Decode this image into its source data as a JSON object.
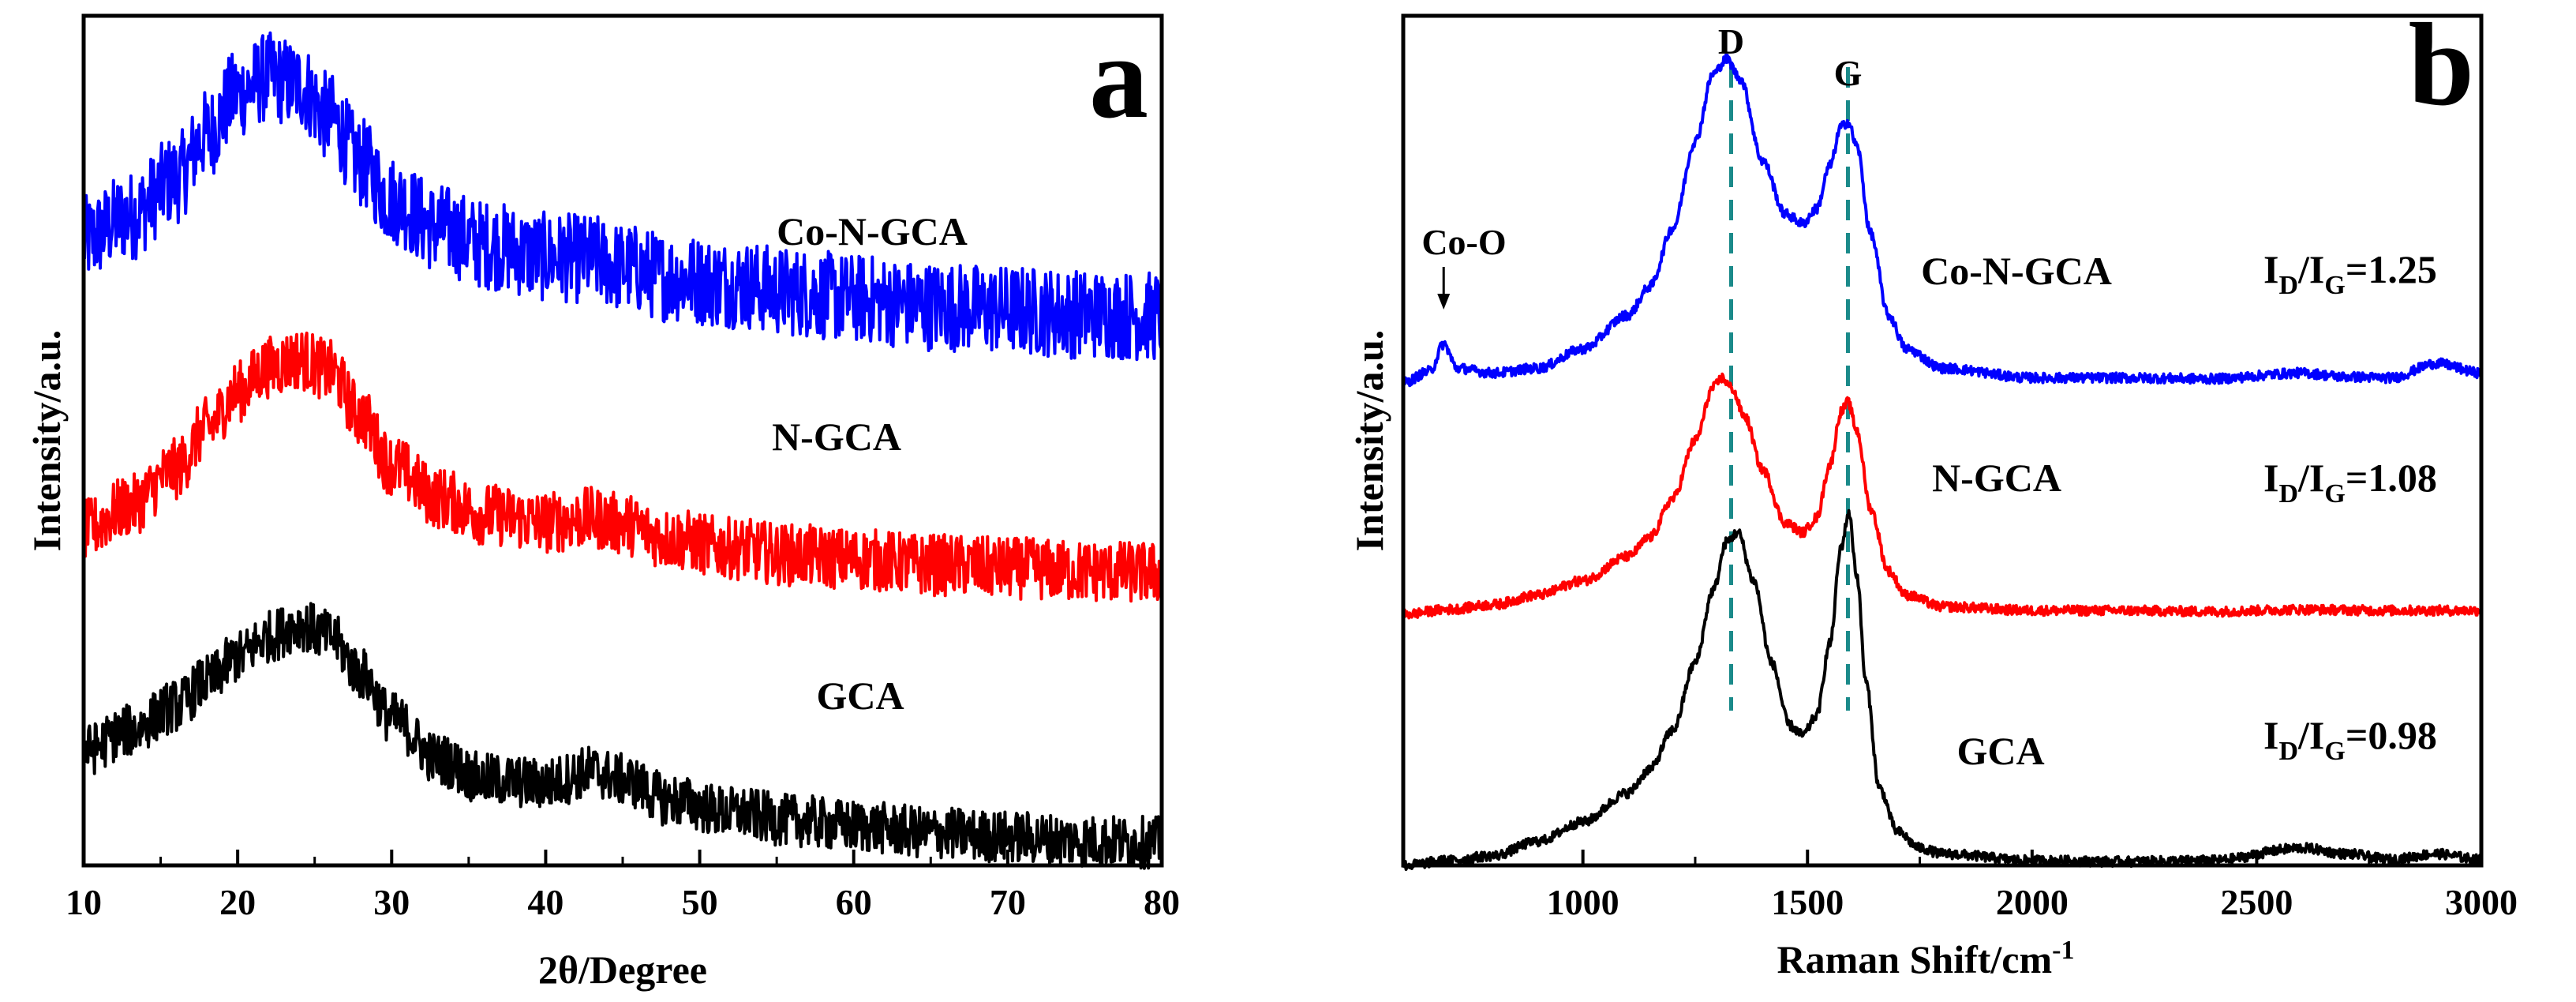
{
  "chart_data": [
    {
      "panel": "a",
      "type": "line",
      "title": "",
      "xlabel": "2θ/Degree",
      "ylabel": "Intensity/a.u.",
      "xlim": [
        10,
        80
      ],
      "xticks": [
        10,
        20,
        30,
        40,
        50,
        60,
        70,
        80
      ],
      "y_ticks_labeled": false,
      "grid": false,
      "legend": "inline labels",
      "series": [
        {
          "name": "Co-N-GCA",
          "color": "#0000ff",
          "offset": 6.6,
          "noise": 0.55,
          "x": [
            10,
            13,
            16,
            18,
            20,
            22,
            24,
            26,
            28,
            30,
            33,
            36,
            40,
            43,
            45,
            48,
            52,
            56,
            60,
            65,
            70,
            75,
            80
          ],
          "y": [
            1.05,
            1.35,
            1.8,
            2.35,
            2.85,
            3.05,
            2.95,
            2.55,
            2.0,
            1.55,
            1.2,
            1.0,
            0.85,
            0.82,
            0.72,
            0.6,
            0.52,
            0.42,
            0.34,
            0.25,
            0.2,
            0.15,
            0.12
          ]
        },
        {
          "name": "N-GCA",
          "color": "#ff0000",
          "offset": 3.5,
          "noise": 0.38,
          "x": [
            10,
            13,
            16,
            18,
            20,
            22,
            24,
            26,
            28,
            30,
            33,
            36,
            40,
            43,
            45,
            48,
            52,
            56,
            60,
            65,
            70,
            75,
            80
          ],
          "y": [
            0.6,
            0.9,
            1.35,
            1.85,
            2.3,
            2.6,
            2.7,
            2.55,
            2.0,
            1.4,
            1.0,
            0.8,
            0.7,
            0.75,
            0.68,
            0.5,
            0.38,
            0.3,
            0.25,
            0.18,
            0.14,
            0.1,
            0.08
          ]
        },
        {
          "name": "GCA",
          "color": "#000000",
          "offset": 0.2,
          "noise": 0.32,
          "x": [
            10,
            13,
            16,
            18,
            20,
            22,
            24,
            26,
            28,
            30,
            33,
            36,
            40,
            43,
            45,
            48,
            52,
            56,
            60,
            65,
            70,
            75,
            80
          ],
          "y": [
            1.2,
            1.45,
            1.75,
            2.05,
            2.35,
            2.6,
            2.75,
            2.6,
            2.15,
            1.6,
            1.1,
            0.85,
            0.8,
            0.95,
            0.85,
            0.6,
            0.45,
            0.35,
            0.28,
            0.2,
            0.15,
            0.1,
            0.08
          ]
        }
      ],
      "panel_letter": "a"
    },
    {
      "panel": "b",
      "type": "line",
      "title": "",
      "xlabel": "Raman Shift/cm",
      "xlabel_superscript": "-1",
      "ylabel": "Intensity/a.u.",
      "xlim": [
        600,
        3000
      ],
      "xticks": [
        1000,
        1500,
        2000,
        2500,
        3000
      ],
      "y_ticks_labeled": false,
      "grid": false,
      "legend": "inline labels",
      "series": [
        {
          "name": "Co-N-GCA",
          "color": "#0000ff",
          "offset": 5.0,
          "noise": 0.05,
          "x": [
            600,
            660,
            690,
            720,
            800,
            900,
            1000,
            1100,
            1150,
            1200,
            1250,
            1290,
            1320,
            1350,
            1400,
            1450,
            1490,
            1520,
            1550,
            1575,
            1590,
            1610,
            1640,
            1680,
            1720,
            1800,
            2000,
            2200,
            2400,
            2600,
            2700,
            2800,
            2900,
            3000
          ],
          "y": [
            0.0,
            0.12,
            0.4,
            0.15,
            0.1,
            0.15,
            0.35,
            0.7,
            1.0,
            1.6,
            2.5,
            3.2,
            3.35,
            3.15,
            2.3,
            1.75,
            1.65,
            1.8,
            2.25,
            2.65,
            2.7,
            2.45,
            1.55,
            0.7,
            0.35,
            0.15,
            0.05,
            0.05,
            0.04,
            0.1,
            0.06,
            0.05,
            0.2,
            0.1
          ]
        },
        {
          "name": "N-GCA",
          "color": "#ff0000",
          "offset": 2.6,
          "noise": 0.05,
          "x": [
            600,
            700,
            800,
            900,
            1000,
            1100,
            1150,
            1200,
            1250,
            1290,
            1310,
            1330,
            1360,
            1400,
            1450,
            1490,
            1520,
            1550,
            1575,
            1590,
            1610,
            1640,
            1680,
            1720,
            1800,
            2000,
            2200,
            2400,
            2600,
            2800,
            3000
          ],
          "y": [
            0.0,
            0.05,
            0.1,
            0.2,
            0.35,
            0.6,
            0.8,
            1.2,
            1.8,
            2.35,
            2.45,
            2.35,
            2.05,
            1.5,
            0.95,
            0.85,
            1.0,
            1.55,
            2.1,
            2.2,
            1.9,
            1.1,
            0.45,
            0.2,
            0.08,
            0.04,
            0.04,
            0.03,
            0.05,
            0.04,
            0.04
          ]
        },
        {
          "name": "GCA",
          "color": "#000000",
          "offset": 0.0,
          "noise": 0.05,
          "x": [
            600,
            700,
            800,
            900,
            1000,
            1100,
            1150,
            1200,
            1250,
            1290,
            1320,
            1345,
            1380,
            1420,
            1460,
            1490,
            1520,
            1550,
            1575,
            1592,
            1610,
            1630,
            1660,
            1700,
            1750,
            1800,
            2000,
            2200,
            2400,
            2600,
            2700,
            2800,
            2900,
            3000
          ],
          "y": [
            0.0,
            0.05,
            0.1,
            0.25,
            0.45,
            0.75,
            1.0,
            1.4,
            2.1,
            2.85,
            3.35,
            3.45,
            2.95,
            2.1,
            1.45,
            1.35,
            1.55,
            2.3,
            3.3,
            3.65,
            3.0,
            1.9,
            0.8,
            0.35,
            0.18,
            0.12,
            0.05,
            0.04,
            0.05,
            0.18,
            0.12,
            0.06,
            0.12,
            0.06
          ]
        }
      ],
      "peak_labels": [
        {
          "text": "D",
          "x": 1330
        },
        {
          "text": "G",
          "x": 1590
        }
      ],
      "dashed_lines": [
        {
          "x": 1330,
          "color": "#1a8a8a"
        },
        {
          "x": 1590,
          "color": "#1a8a8a"
        }
      ],
      "ratio_annotations": [
        {
          "series": "Co-N-GCA",
          "main": "I",
          "sub1": "D",
          "mid": "/I",
          "sub2": "G",
          "value": "=1.25"
        },
        {
          "series": "N-GCA",
          "main": "I",
          "sub1": "D",
          "mid": "/I",
          "sub2": "G",
          "value": "=1.08"
        },
        {
          "series": "GCA",
          "main": "I",
          "sub1": "D",
          "mid": "/I",
          "sub2": "G",
          "value": "=0.98"
        }
      ],
      "annotations": [
        {
          "text": "Co-O",
          "x": 690,
          "arrow": true
        }
      ],
      "panel_letter": "b"
    }
  ]
}
